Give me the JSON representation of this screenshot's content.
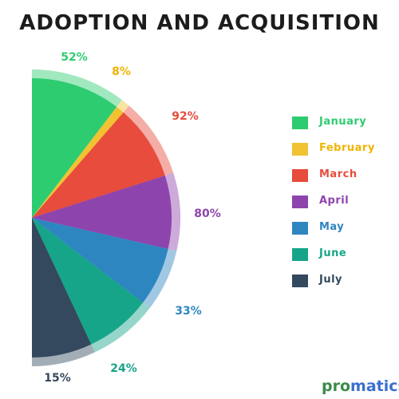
{
  "title": "ADOPTION AND ACQUISITION",
  "chart_data": {
    "type": "pie",
    "variant": "half-pie with outer percentage rings",
    "categories": [
      "January",
      "February",
      "March",
      "April",
      "May",
      "June",
      "July"
    ],
    "values": [
      52,
      8,
      92,
      80,
      33,
      24,
      15
    ],
    "value_labels": [
      "52%",
      "8%",
      "92%",
      "80%",
      "33%",
      "24%",
      "15%"
    ],
    "colors": [
      "#2ecc71",
      "#f1c232",
      "#e74c3c",
      "#8e44ad",
      "#2e86c1",
      "#17a589",
      "#34495e"
    ],
    "legend_position": "right"
  },
  "legend": [
    {
      "label": "January",
      "color": "#2ecc71"
    },
    {
      "label": "February",
      "color": "#f1c232"
    },
    {
      "label": "March",
      "color": "#e74c3c"
    },
    {
      "label": "April",
      "color": "#8e44ad"
    },
    {
      "label": "May",
      "color": "#2e86c1"
    },
    {
      "label": "June",
      "color": "#17a589"
    },
    {
      "label": "July",
      "color": "#34495e"
    }
  ],
  "brand": {
    "part1": "pro",
    "part2": "matics"
  }
}
